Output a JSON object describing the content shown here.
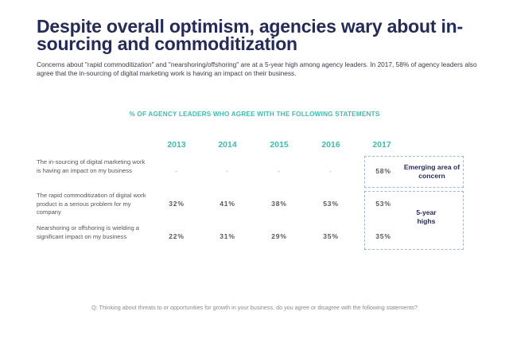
{
  "title": "Despite overall optimism, agencies wary about in-sourcing and commoditization",
  "subtitle": "Concerns about \"rapid commoditization\" and \"nearshoring/offshoring\" are at a 5-year high among agency leaders. In 2017, 58% of agency leaders also agree that the in-sourcing of digital marketing work is having an impact on their business.",
  "colors": {
    "title": "#252b57",
    "accent": "#3dbcb0",
    "box": "#9fb7cf"
  },
  "chart_data": {
    "type": "table",
    "title": "% OF AGENCY LEADERS WHO AGREE WITH THE FOLLOWING STATEMENTS",
    "columns": [
      "2013",
      "2014",
      "2015",
      "2016",
      "2017"
    ],
    "rows": [
      {
        "label": "The in-sourcing of digital marketing work is having an impact on my business",
        "values": [
          "-",
          "-",
          "-",
          "-",
          "58%"
        ]
      },
      {
        "label": "The rapid commoditization of digital work product is a serious problem for my company",
        "values": [
          "32%",
          "41%",
          "38%",
          "53%",
          "53%"
        ]
      },
      {
        "label": "Nearshoring or offshoring is wielding a significant impact on my business",
        "values": [
          "22%",
          "31%",
          "29%",
          "35%",
          "35%"
        ]
      }
    ],
    "annotations": [
      "Emerging area of concern",
      "5-year highs"
    ]
  },
  "footnote": "Q: Thinking about threats to or opportunities for growth in your business, do you agree or disagree with the following statements?"
}
